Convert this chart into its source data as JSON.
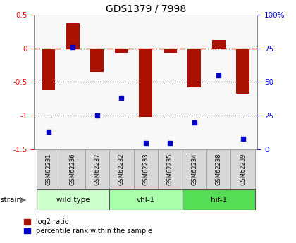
{
  "title": "GDS1379 / 7998",
  "samples": [
    "GSM62231",
    "GSM62236",
    "GSM62237",
    "GSM62232",
    "GSM62233",
    "GSM62235",
    "GSM62234",
    "GSM62238",
    "GSM62239"
  ],
  "groups": [
    {
      "name": "wild type",
      "start": 0,
      "end": 3,
      "color": "#ccffcc"
    },
    {
      "name": "vhl-1",
      "start": 3,
      "end": 6,
      "color": "#aaffaa"
    },
    {
      "name": "hif-1",
      "start": 6,
      "end": 9,
      "color": "#55dd55"
    }
  ],
  "log2_ratio": [
    -0.62,
    0.37,
    -0.35,
    -0.07,
    -1.02,
    -0.07,
    -0.58,
    0.12,
    -0.67
  ],
  "bar_color": "#aa1100",
  "pct_rank": [
    13,
    76,
    25,
    38,
    5,
    5,
    20,
    55,
    8
  ],
  "pct_color": "#0000cc",
  "ylim_left": [
    -1.5,
    0.5
  ],
  "ylim_right": [
    0,
    100
  ],
  "right_ticks": [
    0,
    25,
    50,
    75,
    100
  ],
  "right_tick_labels": [
    "0",
    "25",
    "50",
    "75",
    "100%"
  ],
  "left_ticks": [
    -1.5,
    -1.0,
    -0.5,
    0,
    0.5
  ],
  "left_tick_labels": [
    "-1.5",
    "-1",
    "-0.5",
    "0",
    "0.5"
  ],
  "hline_0_color": "#cc0000",
  "hline_m05_color": "#333333",
  "hline_m1_color": "#333333",
  "legend_red_label": "log2 ratio",
  "legend_blue_label": "percentile rank within the sample",
  "bg_color": "#ffffff",
  "plot_bg": "#f8f8f8"
}
